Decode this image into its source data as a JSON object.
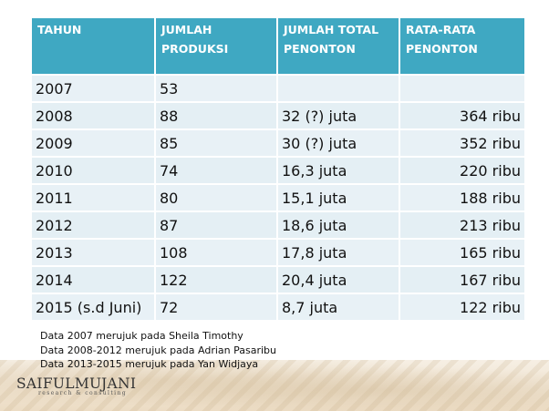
{
  "table": {
    "headers": [
      [
        "TAHUN"
      ],
      [
        "JUMLAH",
        "PRODUKSI"
      ],
      [
        "JUMLAH TOTAL",
        "PENONTON"
      ],
      [
        "RATA-RATA",
        "PENONTON"
      ]
    ],
    "rows": [
      [
        "2007",
        "53",
        "",
        ""
      ],
      [
        "2008",
        "88",
        "32 (?) juta",
        "364 ribu"
      ],
      [
        "2009",
        "85",
        "30 (?) juta",
        "352 ribu"
      ],
      [
        "2010",
        "74",
        "16,3 juta",
        "220 ribu"
      ],
      [
        "2011",
        "80",
        "15,1 juta",
        "188 ribu"
      ],
      [
        "2012",
        "87",
        "18,6 juta",
        "213 ribu"
      ],
      [
        "2013",
        "108",
        "17,8 juta",
        "165 ribu"
      ],
      [
        "2014",
        "122",
        "20,4 juta",
        "167 ribu"
      ],
      [
        "2015 (s.d Juni)",
        "72",
        "8,7 juta",
        "122 ribu"
      ]
    ]
  },
  "notes": [
    "Data 2007 merujuk pada Sheila Timothy",
    "Data 2008-2012 merujuk pada Adrian Pasaribu",
    "Data 2013-2015 merujuk pada Yan Widjaya"
  ],
  "logo": {
    "name": "SAIFULMUJANI",
    "tagline": "research & consulting"
  },
  "colors": {
    "header_bg": "#3fa8c2",
    "cell_bg": "#e4eff4"
  }
}
